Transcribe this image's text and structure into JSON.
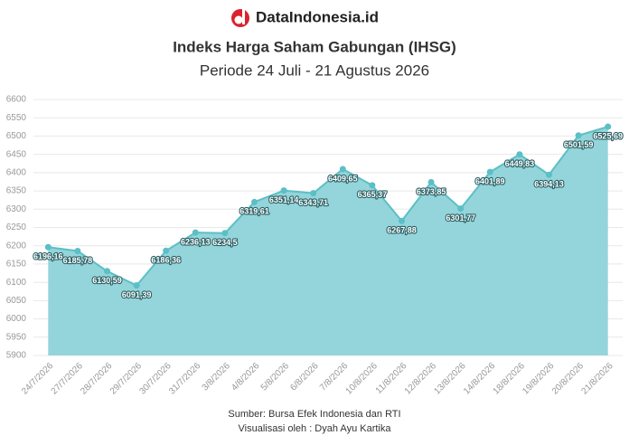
{
  "chart_data": {
    "type": "area",
    "brand": "DataIndonesia.id",
    "title": "Indeks Harga Saham Gabungan (IHSG)",
    "subtitle": "Periode 24 Juli - 21 Agustus 2026",
    "source": "Sumber: Bursa Efek Indonesia dan RTI",
    "credit": "Visualisasi oleh : Dyah Ayu Kartika",
    "categories": [
      "24/7/2026",
      "27/7/2026",
      "28/7/2026",
      "29/7/2026",
      "30/7/2026",
      "31/7/2026",
      "3/8/2026",
      "4/8/2026",
      "5/8/2026",
      "6/8/2026",
      "7/8/2026",
      "10/8/2026",
      "11/8/2026",
      "12/8/2026",
      "13/8/2026",
      "14/8/2026",
      "18/8/2026",
      "19/8/2026",
      "20/8/2026",
      "21/8/2026"
    ],
    "values": [
      6196.16,
      6185.78,
      6130.59,
      6091.39,
      6186.36,
      6236.13,
      6234.5,
      6319.61,
      6351.14,
      6343.71,
      6409.65,
      6365.37,
      6267.88,
      6373.85,
      6301.77,
      6401.89,
      6449.83,
      6394.13,
      6501.59,
      6525.69
    ],
    "value_labels": [
      "6196,16",
      "6185,78",
      "6130,59",
      "6091,39",
      "6186,36",
      "6236,13",
      "6234,5",
      "6319,61",
      "6351,14",
      "6343,71",
      "6409,65",
      "6365,37",
      "6267,88",
      "6373,85",
      "6301,77",
      "6401,89",
      "6449,83",
      "6394,13",
      "6501,59",
      "6525,69"
    ],
    "color": "#5bbfc6",
    "fill": "#93d5da",
    "ylim": [
      5900,
      6600
    ],
    "yticks": [
      5900,
      5950,
      6000,
      6050,
      6100,
      6150,
      6200,
      6250,
      6300,
      6350,
      6400,
      6450,
      6500,
      6550,
      6600
    ],
    "grid": true
  }
}
